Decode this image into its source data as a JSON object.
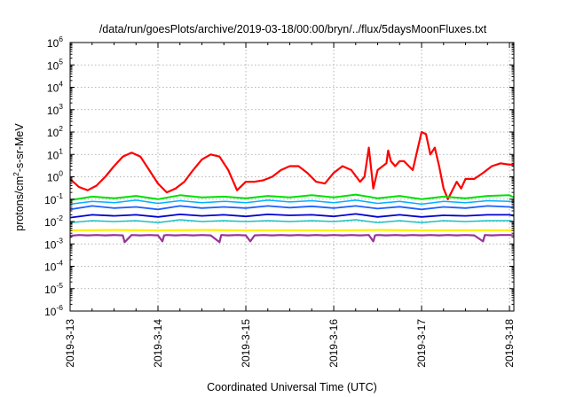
{
  "chart_data": {
    "type": "line",
    "title": "/data/run/goesPlots/archive/2019-03-18/00:00/bryn/../flux/5daysMoonFluxes.txt",
    "xlabel": "Coordinated Universal Time (UTC)",
    "ylabel_parts": [
      "protons/cm",
      "2",
      "-s-sr-MeV"
    ],
    "y_scale": "log",
    "ylim": [
      1e-06,
      1000000.0
    ],
    "xlim_days": [
      0,
      5.05
    ],
    "x_ticks": [
      {
        "day": 0,
        "label": "2019-3-13"
      },
      {
        "day": 1,
        "label": "2019-3-14"
      },
      {
        "day": 2,
        "label": "2019-3-15"
      },
      {
        "day": 3,
        "label": "2019-3-16"
      },
      {
        "day": 4,
        "label": "2019-3-17"
      },
      {
        "day": 5,
        "label": "2019-3-18"
      }
    ],
    "y_ticks": [
      {
        "exp": 6,
        "label": "10",
        "sup": "6"
      },
      {
        "exp": 5,
        "label": "10",
        "sup": "5"
      },
      {
        "exp": 4,
        "label": "10",
        "sup": "4"
      },
      {
        "exp": 3,
        "label": "10",
        "sup": "3"
      },
      {
        "exp": 2,
        "label": "10",
        "sup": "2"
      },
      {
        "exp": 1,
        "label": "10",
        "sup": "1"
      },
      {
        "exp": 0,
        "label": "10",
        "sup": "0"
      },
      {
        "exp": -1,
        "label": "10",
        "sup": "-1"
      },
      {
        "exp": -2,
        "label": "10",
        "sup": "-2"
      },
      {
        "exp": -3,
        "label": "10",
        "sup": "-3"
      },
      {
        "exp": -4,
        "label": "10",
        "sup": "-4"
      },
      {
        "exp": -5,
        "label": "10",
        "sup": "-5"
      },
      {
        "exp": -6,
        "label": "10",
        "sup": "-6"
      }
    ],
    "grid": true,
    "series": [
      {
        "color": "#ff0000",
        "width": 2.2,
        "x": [
          0,
          0.1,
          0.2,
          0.3,
          0.4,
          0.5,
          0.6,
          0.7,
          0.8,
          0.9,
          1,
          1.1,
          1.2,
          1.3,
          1.4,
          1.5,
          1.6,
          1.7,
          1.8,
          1.9,
          2,
          2.1,
          2.2,
          2.3,
          2.4,
          2.5,
          2.6,
          2.7,
          2.8,
          2.9,
          3,
          3.1,
          3.2,
          3.3,
          3.35,
          3.4,
          3.45,
          3.5,
          3.6,
          3.62,
          3.65,
          3.7,
          3.75,
          3.8,
          3.9,
          4,
          4.05,
          4.1,
          4.15,
          4.2,
          4.25,
          4.3,
          4.4,
          4.45,
          4.5,
          4.6,
          4.7,
          4.8,
          4.9,
          5,
          5.05
        ],
        "y": [
          0.8,
          0.35,
          0.25,
          0.4,
          1.0,
          3.0,
          8.0,
          12.0,
          8.0,
          2.0,
          0.5,
          0.2,
          0.3,
          0.6,
          2.0,
          6.0,
          10.0,
          8.0,
          2.0,
          0.25,
          0.6,
          0.6,
          0.7,
          1.0,
          2.0,
          3.0,
          3.0,
          1.5,
          0.6,
          0.5,
          1.5,
          3.0,
          2.0,
          0.6,
          1.0,
          20.0,
          0.3,
          2.0,
          4.0,
          15.0,
          5.0,
          3.0,
          5.0,
          5.0,
          2.0,
          100.0,
          80.0,
          10.0,
          20.0,
          3.0,
          0.3,
          0.1,
          0.6,
          0.3,
          0.8,
          0.8,
          1.5,
          3.0,
          4.0,
          3.5,
          3.5
        ]
      },
      {
        "color": "#00e000",
        "width": 2.0,
        "x": [
          0,
          0.25,
          0.5,
          0.75,
          1,
          1.25,
          1.5,
          1.75,
          2,
          2.25,
          2.5,
          2.75,
          3,
          3.25,
          3.5,
          3.75,
          4,
          4.25,
          4.5,
          4.75,
          5,
          5.05
        ],
        "y": [
          0.09,
          0.13,
          0.11,
          0.14,
          0.1,
          0.15,
          0.12,
          0.13,
          0.11,
          0.14,
          0.12,
          0.15,
          0.12,
          0.16,
          0.11,
          0.14,
          0.1,
          0.13,
          0.11,
          0.14,
          0.15,
          0.12
        ]
      },
      {
        "color": "#00b0ff",
        "width": 1.5,
        "x": [
          0,
          0.25,
          0.5,
          0.75,
          1,
          1.25,
          1.5,
          1.75,
          2,
          2.25,
          2.5,
          2.75,
          3,
          3.25,
          3.5,
          3.75,
          4,
          4.25,
          4.5,
          4.75,
          5,
          5.05
        ],
        "y": [
          0.06,
          0.08,
          0.07,
          0.09,
          0.065,
          0.085,
          0.07,
          0.08,
          0.07,
          0.09,
          0.075,
          0.085,
          0.07,
          0.09,
          0.065,
          0.08,
          0.06,
          0.08,
          0.07,
          0.085,
          0.08,
          0.075
        ]
      },
      {
        "color": "#2060ff",
        "width": 1.8,
        "x": [
          0,
          0.25,
          0.5,
          0.75,
          1,
          1.25,
          1.5,
          1.75,
          2,
          2.25,
          2.5,
          2.75,
          3,
          3.25,
          3.5,
          3.75,
          4,
          4.25,
          4.5,
          4.75,
          5,
          5.05
        ],
        "y": [
          0.035,
          0.05,
          0.04,
          0.045,
          0.035,
          0.05,
          0.04,
          0.045,
          0.04,
          0.05,
          0.042,
          0.048,
          0.04,
          0.05,
          0.038,
          0.046,
          0.035,
          0.045,
          0.04,
          0.05,
          0.045,
          0.04
        ]
      },
      {
        "color": "#0000d0",
        "width": 1.8,
        "x": [
          0,
          0.25,
          0.5,
          0.75,
          1,
          1.25,
          1.5,
          1.75,
          2,
          2.25,
          2.5,
          2.75,
          3,
          3.25,
          3.5,
          3.75,
          4,
          4.25,
          4.5,
          4.75,
          5,
          5.05
        ],
        "y": [
          0.015,
          0.02,
          0.018,
          0.02,
          0.016,
          0.021,
          0.018,
          0.02,
          0.017,
          0.021,
          0.019,
          0.02,
          0.017,
          0.022,
          0.016,
          0.02,
          0.016,
          0.019,
          0.018,
          0.02,
          0.02,
          0.018
        ]
      },
      {
        "color": "#20c0c0",
        "width": 1.5,
        "x": [
          0,
          0.25,
          0.5,
          0.75,
          1,
          1.25,
          1.5,
          1.75,
          2,
          2.25,
          2.5,
          2.75,
          3,
          3.25,
          3.5,
          3.75,
          4,
          4.25,
          4.5,
          4.75,
          5,
          5.05
        ],
        "y": [
          0.009,
          0.011,
          0.01,
          0.011,
          0.009,
          0.012,
          0.01,
          0.011,
          0.01,
          0.011,
          0.01,
          0.011,
          0.01,
          0.012,
          0.009,
          0.011,
          0.009,
          0.011,
          0.01,
          0.011,
          0.011,
          0.01
        ]
      },
      {
        "color": "#ffee00",
        "width": 2.2,
        "x": [
          0,
          0.5,
          1,
          1.5,
          2,
          2.5,
          3,
          3.5,
          4,
          4.5,
          5,
          5.05
        ],
        "y": [
          0.004,
          0.0042,
          0.004,
          0.0042,
          0.004,
          0.0041,
          0.004,
          0.0042,
          0.004,
          0.0041,
          0.0041,
          0.004
        ]
      },
      {
        "color": "#993399",
        "width": 2.2,
        "x": [
          0,
          0.1,
          0.2,
          0.3,
          0.4,
          0.5,
          0.6,
          0.62,
          0.7,
          0.8,
          0.9,
          1,
          1.05,
          1.07,
          1.1,
          1.2,
          1.3,
          1.4,
          1.5,
          1.6,
          1.7,
          1.72,
          1.8,
          1.9,
          2,
          2.05,
          2.1,
          2.2,
          2.3,
          2.4,
          2.5,
          2.6,
          2.7,
          2.8,
          2.9,
          3,
          3.1,
          3.2,
          3.3,
          3.4,
          3.45,
          3.47,
          3.5,
          3.6,
          3.7,
          3.8,
          3.9,
          4,
          4.1,
          4.2,
          4.3,
          4.4,
          4.5,
          4.6,
          4.7,
          4.72,
          4.8,
          4.9,
          5,
          5.05
        ],
        "y": [
          0.0023,
          0.0025,
          0.0024,
          0.0025,
          0.0024,
          0.0025,
          0.0024,
          0.0012,
          0.0025,
          0.0024,
          0.0025,
          0.0024,
          0.0013,
          0.0024,
          0.0025,
          0.0024,
          0.0025,
          0.0024,
          0.0025,
          0.0024,
          0.0012,
          0.0025,
          0.0024,
          0.0025,
          0.0024,
          0.0013,
          0.0024,
          0.0025,
          0.0024,
          0.0025,
          0.0024,
          0.0025,
          0.0024,
          0.0025,
          0.0024,
          0.0025,
          0.0024,
          0.0025,
          0.0024,
          0.0025,
          0.0013,
          0.0024,
          0.0025,
          0.0024,
          0.0025,
          0.0024,
          0.0025,
          0.0024,
          0.0025,
          0.0024,
          0.0025,
          0.0024,
          0.0025,
          0.0024,
          0.0013,
          0.0025,
          0.0024,
          0.0025,
          0.0025,
          0.0024
        ]
      }
    ]
  }
}
